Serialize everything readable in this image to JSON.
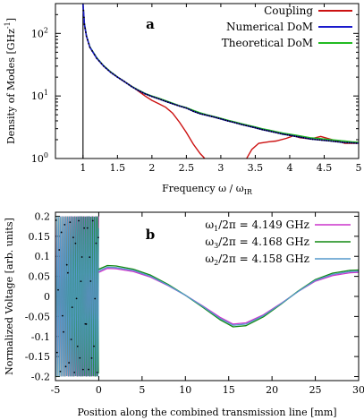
{
  "chart_data": [
    {
      "panel_label": "a",
      "type": "line",
      "xlabel": "Frequency ω / ω",
      "xlabel_sub": "IR",
      "ylabel": "Density of Modes [GHz",
      "ylabel_sup": "-1",
      "ylabel_end": "]",
      "x_ticks": [
        "1",
        "1.5",
        "2",
        "2.5",
        "3",
        "3.5",
        "4",
        "4.5",
        "5"
      ],
      "y_ticks": [
        {
          "base": "10",
          "exp": "0",
          "value": 1
        },
        {
          "base": "10",
          "exp": "1",
          "value": 10
        },
        {
          "base": "10",
          "exp": "2",
          "value": 100
        }
      ],
      "xlim": [
        0.6,
        5.0
      ],
      "ylim": [
        1,
        300
      ],
      "y_scale": "log",
      "legend_position": "top-right",
      "vertical_line_x": 1.0,
      "series": [
        {
          "name": "Coupling",
          "color": "#cc1111",
          "x": [
            1.0,
            1.02,
            1.05,
            1.1,
            1.2,
            1.3,
            1.4,
            1.5,
            1.6,
            1.7,
            1.8,
            1.9,
            2.0,
            2.1,
            2.2,
            2.3,
            2.4,
            2.5,
            2.6,
            2.7,
            2.75,
            2.8
          ],
          "y": [
            300,
            140,
            90,
            60,
            40,
            30,
            24,
            20,
            17,
            14.5,
            12,
            10,
            8.5,
            7.5,
            6.6,
            5.3,
            3.8,
            2.6,
            1.7,
            1.2,
            1.05,
            0.9
          ]
        },
        {
          "name": "Coupling",
          "color": "#cc1111",
          "x": [
            3.35,
            3.45,
            3.55,
            3.7,
            3.8,
            3.95,
            4.05,
            4.15,
            4.3,
            4.45,
            4.55,
            4.65,
            4.8,
            5.0
          ],
          "y": [
            0.9,
            1.4,
            1.75,
            1.85,
            1.9,
            2.1,
            2.3,
            2.15,
            2.05,
            2.25,
            2.1,
            1.95,
            1.75,
            1.75
          ]
        },
        {
          "name": "Numerical DoM",
          "color": "#1a1acc",
          "x": [
            1.0,
            1.02,
            1.05,
            1.1,
            1.2,
            1.3,
            1.4,
            1.5,
            1.6,
            1.7,
            1.8,
            1.9,
            2.0,
            2.1,
            2.2,
            2.3,
            2.4,
            2.5,
            2.6,
            2.7,
            2.8,
            2.9,
            3.0,
            3.1,
            3.2,
            3.3,
            3.4,
            3.5,
            3.6,
            3.7,
            3.8,
            3.9,
            4.0,
            4.1,
            4.2,
            4.3,
            4.4,
            4.5,
            4.6,
            4.7,
            4.8,
            4.9,
            5.0
          ],
          "y": [
            300,
            140,
            90,
            60,
            40,
            30,
            24,
            20,
            17,
            14.2,
            12.3,
            10.8,
            9.8,
            9.0,
            8.2,
            7.5,
            6.9,
            6.4,
            5.7,
            5.2,
            4.9,
            4.6,
            4.3,
            4.0,
            3.75,
            3.5,
            3.3,
            3.1,
            2.9,
            2.75,
            2.6,
            2.45,
            2.35,
            2.25,
            2.15,
            2.05,
            2.0,
            1.95,
            1.9,
            1.85,
            1.8,
            1.78,
            1.75
          ]
        },
        {
          "name": "Theoretical DoM",
          "color": "#22bb22",
          "x": [
            1.0,
            1.02,
            1.05,
            1.1,
            1.2,
            1.3,
            1.4,
            1.5,
            1.6,
            1.7,
            1.8,
            1.9,
            2.0,
            2.1,
            2.2,
            2.3,
            2.4,
            2.5,
            2.6,
            2.7,
            2.8,
            2.9,
            3.0,
            3.1,
            3.2,
            3.3,
            3.4,
            3.5,
            3.6,
            3.7,
            3.8,
            3.9,
            4.0,
            4.1,
            4.2,
            4.3,
            4.4,
            4.5,
            4.6,
            4.7,
            4.8,
            4.9,
            5.0
          ],
          "y": [
            300,
            145,
            92,
            61,
            41,
            30.5,
            24.5,
            20.2,
            17.1,
            14.4,
            12.5,
            11.0,
            10.0,
            9.2,
            8.4,
            7.7,
            7.0,
            6.5,
            5.9,
            5.4,
            5.0,
            4.7,
            4.4,
            4.1,
            3.85,
            3.6,
            3.4,
            3.2,
            3.0,
            2.85,
            2.7,
            2.55,
            2.45,
            2.35,
            2.25,
            2.15,
            2.1,
            2.05,
            2.0,
            1.95,
            1.9,
            1.85,
            1.82
          ]
        }
      ]
    },
    {
      "panel_label": "b",
      "type": "line",
      "xlabel": "Position along the combined transmission line [mm]",
      "ylabel": "Normalized Voltage [arb. units]",
      "x_ticks": [
        "-5",
        "0",
        "5",
        "10",
        "15",
        "20",
        "25",
        "30"
      ],
      "y_ticks": [
        "-0.2",
        "-0.15",
        "-0.1",
        "-0.05",
        "0",
        "0.05",
        "0.1",
        "0.15",
        "0.2"
      ],
      "xlim": [
        -5,
        30
      ],
      "ylim": [
        -0.21,
        0.21
      ],
      "legend_position": "top-right",
      "series": [
        {
          "name": "ω",
          "name_sub": "1",
          "name_rest": "/2π = 4.149 GHz",
          "color": "#cc33cc",
          "fast_region": [
            -5,
            0
          ],
          "fast_amplitude": 0.2,
          "x": [
            0,
            1,
            2,
            4,
            6,
            8,
            10,
            12,
            14,
            15.5,
            17,
            19,
            21,
            23,
            25,
            27,
            29,
            30
          ],
          "y": [
            0.06,
            0.07,
            0.069,
            0.062,
            0.048,
            0.027,
            0.003,
            -0.024,
            -0.052,
            -0.069,
            -0.066,
            -0.046,
            -0.018,
            0.012,
            0.038,
            0.052,
            0.059,
            0.06
          ]
        },
        {
          "name": "ω",
          "name_sub": "3",
          "name_rest": "/2π = 4.168 GHz",
          "color": "#118811",
          "fast_region": [
            -5,
            0
          ],
          "fast_amplitude": 0.2,
          "x": [
            0,
            1,
            2,
            4,
            6,
            8,
            10,
            12,
            14,
            15.5,
            17,
            19,
            21,
            23,
            25,
            27,
            29,
            30
          ],
          "y": [
            0.068,
            0.077,
            0.076,
            0.068,
            0.053,
            0.03,
            0.003,
            -0.027,
            -0.058,
            -0.076,
            -0.073,
            -0.051,
            -0.02,
            0.013,
            0.042,
            0.058,
            0.065,
            0.066
          ]
        },
        {
          "name": "ω",
          "name_sub": "2",
          "name_rest": "/2π = 4.158 GHz",
          "color": "#5599cc",
          "fast_region": [
            -5,
            0
          ],
          "fast_amplitude": 0.2,
          "x": [
            0,
            1,
            2,
            4,
            6,
            8,
            10,
            12,
            14,
            15.5,
            17,
            19,
            21,
            23,
            25,
            27,
            29,
            30
          ],
          "y": [
            0.064,
            0.073,
            0.072,
            0.065,
            0.05,
            0.028,
            0.003,
            -0.025,
            -0.055,
            -0.072,
            -0.069,
            -0.048,
            -0.019,
            0.012,
            0.04,
            0.055,
            0.062,
            0.063
          ]
        }
      ]
    }
  ]
}
